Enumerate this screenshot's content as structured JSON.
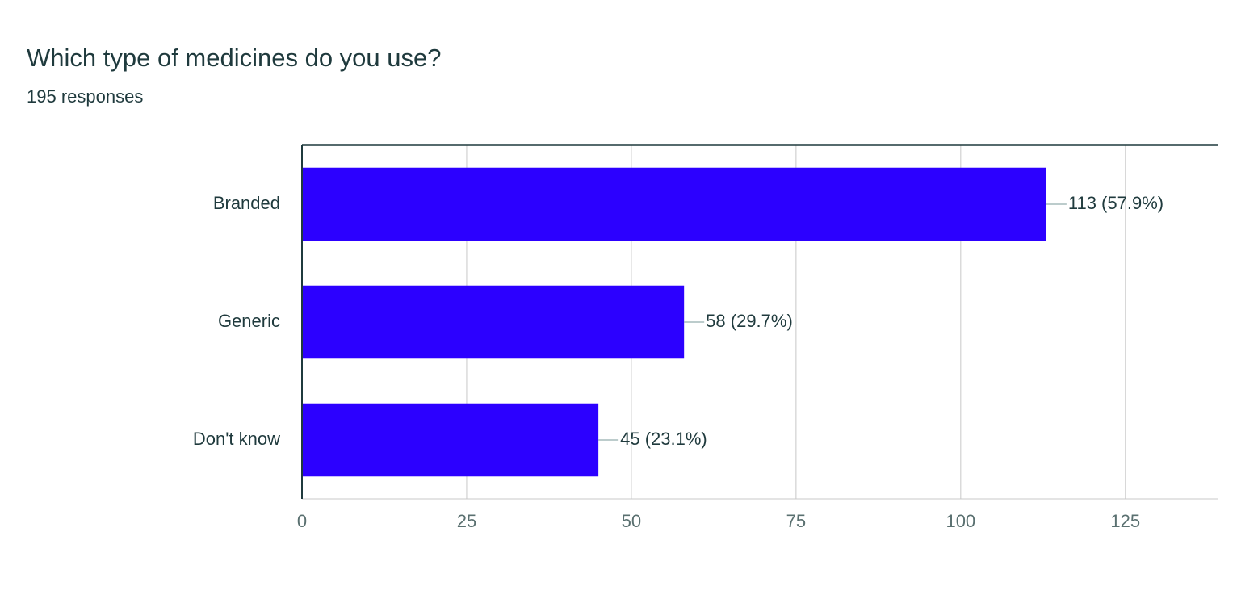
{
  "chart_data": {
    "type": "bar",
    "orientation": "horizontal",
    "title": "Which type of medicines do you use?",
    "subtitle": "195 responses",
    "categories": [
      "Branded",
      "Generic",
      "Don't know"
    ],
    "values": [
      113,
      58,
      45
    ],
    "value_labels": [
      "113 (57.9%)",
      "58 (29.7%)",
      "45 (23.1%)"
    ],
    "color": "#2c00ff",
    "xlim": [
      0,
      139
    ],
    "xticks": [
      0,
      25,
      50,
      75,
      100,
      125
    ],
    "grid": true
  }
}
